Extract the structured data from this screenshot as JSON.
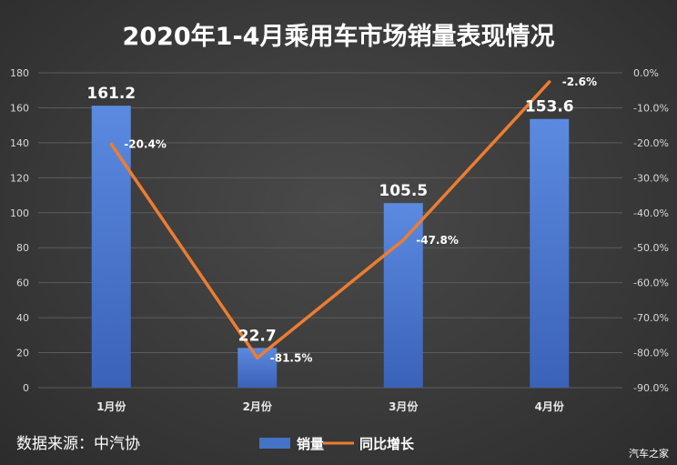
{
  "chart_data": {
    "type": "bar",
    "title": "2020年1-4月乘用车市场销量表现情况",
    "categories": [
      "1月份",
      "2月份",
      "3月份",
      "4月份"
    ],
    "series": [
      {
        "name": "销量",
        "type": "bar",
        "axis": "left",
        "values": [
          161.2,
          22.7,
          105.5,
          153.6
        ],
        "labels": [
          "161.2",
          "22.7",
          "105.5",
          "153.6"
        ],
        "color": "#4472c4"
      },
      {
        "name": "同比增长",
        "type": "line",
        "axis": "right",
        "values": [
          -20.4,
          -81.5,
          -47.8,
          -2.6
        ],
        "labels": [
          "-20.4%",
          "-81.5%",
          "-47.8%",
          "-2.6%"
        ],
        "color": "#ed7d31"
      }
    ],
    "y_left": {
      "range": [
        0,
        180
      ],
      "ticks": [
        0,
        20,
        40,
        60,
        80,
        100,
        120,
        140,
        160,
        180
      ],
      "tick_labels": [
        "0",
        "20",
        "40",
        "60",
        "80",
        "100",
        "120",
        "140",
        "160",
        "180"
      ]
    },
    "y_right": {
      "range": [
        -90,
        0
      ],
      "ticks": [
        0,
        -10,
        -20,
        -30,
        -40,
        -50,
        -60,
        -70,
        -80,
        -90
      ],
      "tick_labels": [
        "0.0%",
        "-10.0%",
        "-20.0%",
        "-30.0%",
        "-40.0%",
        "-50.0%",
        "-60.0%",
        "-70.0%",
        "-80.0%",
        "-90.0%"
      ]
    },
    "grid": true,
    "legend_position": "bottom-center"
  },
  "source": "数据来源：中汽协",
  "watermark": "汽车之家"
}
